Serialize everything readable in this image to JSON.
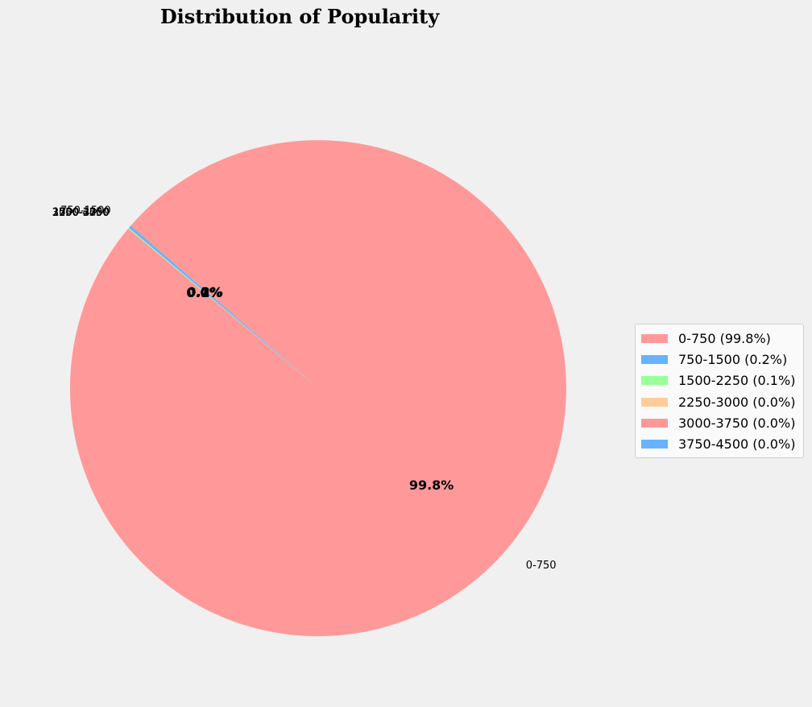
{
  "chart_data": {
    "type": "pie",
    "title": "Distribution of Popularity",
    "categories": [
      "0-750",
      "750-1500",
      "1500-2250",
      "2250-3000",
      "3000-3750",
      "3750-4500"
    ],
    "values": [
      99.75,
      0.18,
      0.05,
      0.01,
      0.005,
      0.005
    ],
    "slice_labels": [
      "0-750",
      "750-1500",
      "1500-2250",
      "2250-3000",
      "3000-3750",
      "3750-4500"
    ],
    "pct_labels": [
      "99.8%",
      "0.2%",
      "0.1%",
      "0.0%",
      "0.0%",
      "0.0%"
    ],
    "colors": [
      "#ff9999",
      "#66b3ff",
      "#99ff99",
      "#ffcc99",
      "#ff9999",
      "#66b3ff"
    ],
    "legend": {
      "placement": "right",
      "entries": [
        "0-750 (99.8%)",
        "750-1500 (0.2%)",
        "1500-2250 (0.1%)",
        "2250-3000 (0.0%)",
        "3000-3750 (0.0%)",
        "3750-4500 (0.0%)"
      ]
    }
  }
}
